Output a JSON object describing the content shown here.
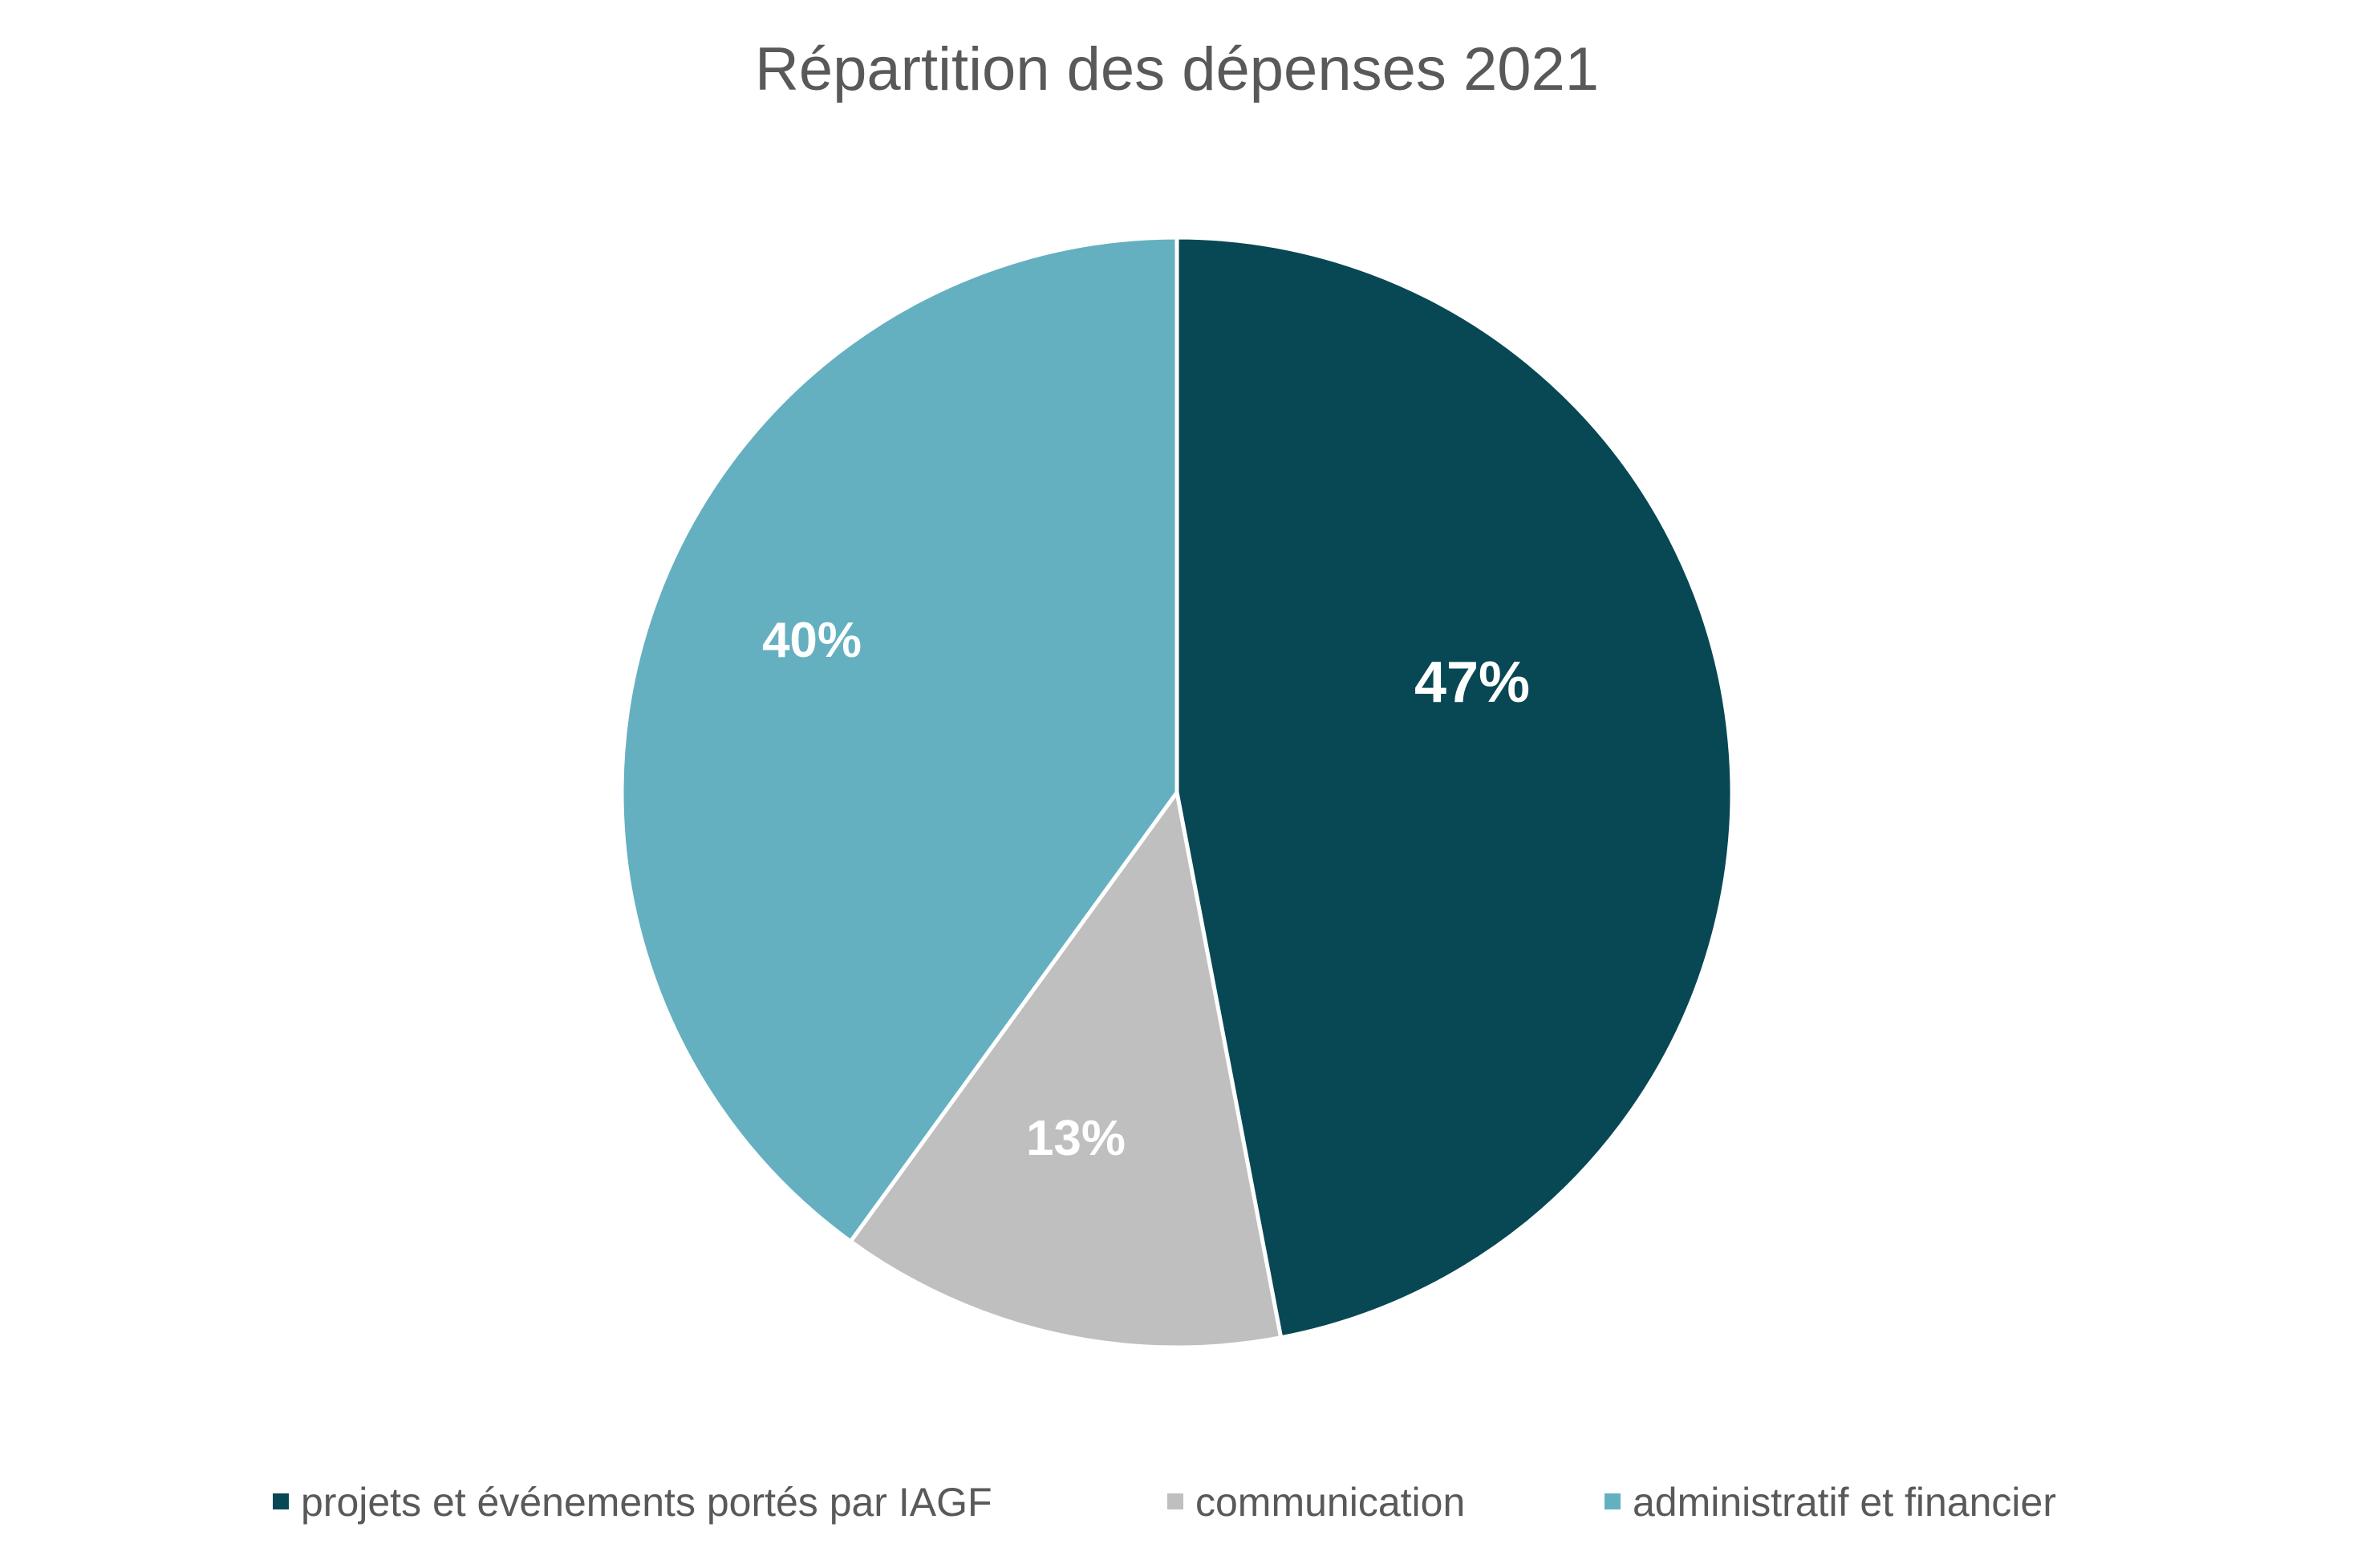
{
  "chart_data": {
    "type": "pie",
    "title": "Répartition des dépenses 2021",
    "categories": [
      "projets et événements portés par IAGF",
      "communication",
      "administratif et financier"
    ],
    "values": [
      47,
      13,
      40
    ],
    "labels": [
      "47%",
      "13%",
      "40%"
    ],
    "colors": [
      "#074854",
      "#BFBFBF",
      "#64B0C0"
    ],
    "start_angle": "12 o'clock",
    "direction": "clockwise",
    "legend_position": "bottom"
  }
}
